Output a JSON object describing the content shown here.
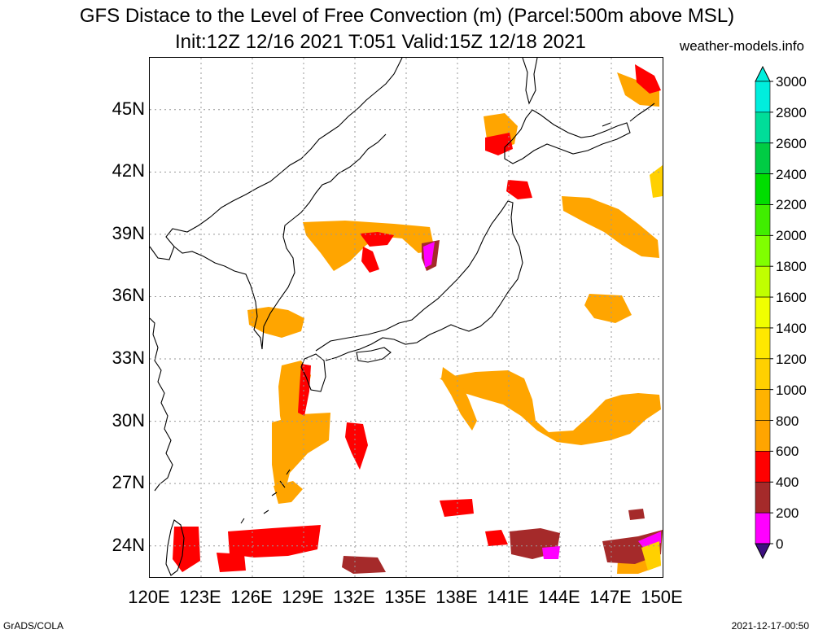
{
  "title": {
    "line1": "GFS Distace to the Level of Free Convection (m) (Parcel:500m above MSL)",
    "line2": "Init:12Z 12/16 2021 T:051 Valid:15Z 12/18 2021",
    "site": "weather-models.info"
  },
  "footer": {
    "left": "GrADS/COLA",
    "right": "2021-12-17-00:50"
  },
  "axes": {
    "lon_labels": [
      "120E",
      "123E",
      "126E",
      "129E",
      "132E",
      "135E",
      "138E",
      "141E",
      "144E",
      "147E",
      "150E"
    ],
    "lat_labels": [
      "45N",
      "42N",
      "39N",
      "36N",
      "33N",
      "30N",
      "27N",
      "24N"
    ],
    "lon_range": [
      120,
      150
    ],
    "lat_range": [
      22.5,
      47.5
    ]
  },
  "colorbar": {
    "labels": [
      "3000",
      "2800",
      "2600",
      "2400",
      "2200",
      "2000",
      "1800",
      "1600",
      "1400",
      "1200",
      "1000",
      "800",
      "600",
      "400",
      "200",
      "0"
    ],
    "colors": {
      "0": "#3d0f80",
      "200": "#ff00ff",
      "400": "#a52a2a",
      "600": "#ff0000",
      "800": "#ffa500",
      "1000": "#ffb300",
      "1200": "#ffd000",
      "1400": "#ffe800",
      "1600": "#f0ff00",
      "1800": "#c0ff00",
      "2000": "#80ff00",
      "2200": "#40ee00",
      "2400": "#00dd00",
      "2600": "#00cc44",
      "2800": "#00dd99",
      "3000": "#00eedd"
    }
  }
}
